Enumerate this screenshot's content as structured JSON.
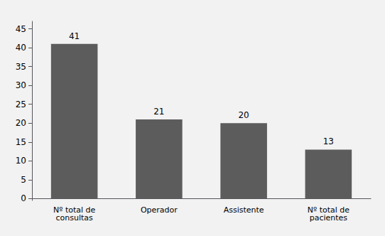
{
  "chart_data": {
    "type": "bar",
    "categories": [
      "Nº total de\nconsultas",
      "Operador",
      "Assistente",
      "Nº total de\npacientes"
    ],
    "values": [
      41,
      21,
      20,
      13
    ],
    "color": "#5c5c5c",
    "ylim": [
      -0.5,
      47
    ],
    "yticks": [
      0,
      5,
      10,
      15,
      20,
      25,
      30,
      35,
      40,
      45
    ],
    "grid": false,
    "data_labels": true
  }
}
